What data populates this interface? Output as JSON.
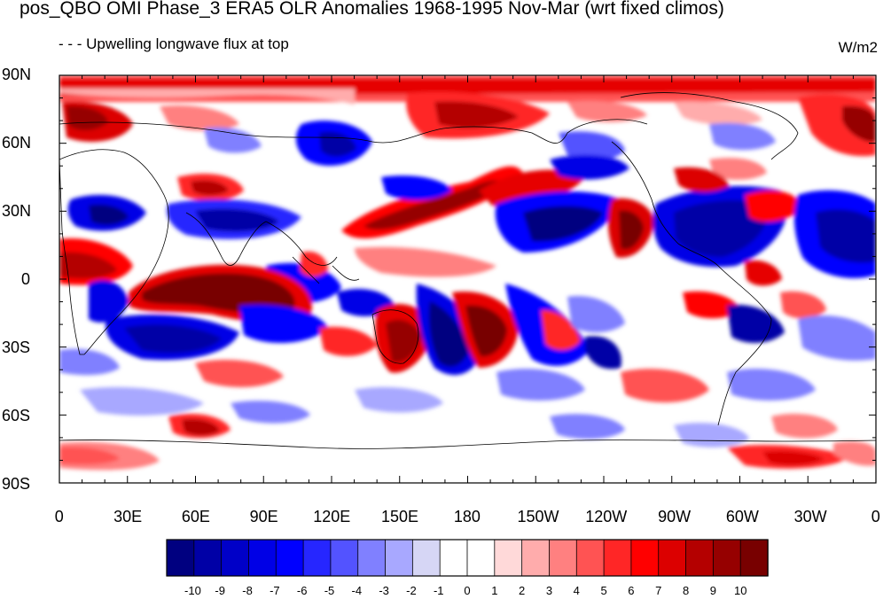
{
  "title": "pos_QBO OMI Phase_3 ERA5 OLR Anomalies 1968-1995 Nov-Mar (wrt fixed climos)",
  "subtitle": "- - - Upwelling longwave flux at top",
  "units": "W/m2",
  "lat_labels": [
    "90N",
    "60N",
    "30N",
    "0",
    "30S",
    "60S",
    "90S"
  ],
  "lon_labels": [
    "0",
    "30E",
    "60E",
    "90E",
    "120E",
    "150E",
    "180",
    "150W",
    "120W",
    "90W",
    "60W",
    "30W",
    "0"
  ],
  "colorbar": {
    "labels": [
      "-10",
      "-9",
      "-8",
      "-7",
      "-6",
      "-5",
      "-4",
      "-3",
      "-2",
      "-1",
      "0",
      "1",
      "2",
      "3",
      "4",
      "5",
      "6",
      "7",
      "8",
      "9",
      "10"
    ],
    "colors": [
      "#000080",
      "#0000a6",
      "#0000c8",
      "#0000e6",
      "#0000ff",
      "#2626ff",
      "#5353ff",
      "#8080ff",
      "#a8a8ff",
      "#d6d6f5",
      "#ffffff",
      "#ffffff",
      "#ffd9d9",
      "#ffacac",
      "#ff8080",
      "#ff5353",
      "#ff2626",
      "#ff0000",
      "#dc0000",
      "#b40000",
      "#960000",
      "#780000"
    ]
  }
}
